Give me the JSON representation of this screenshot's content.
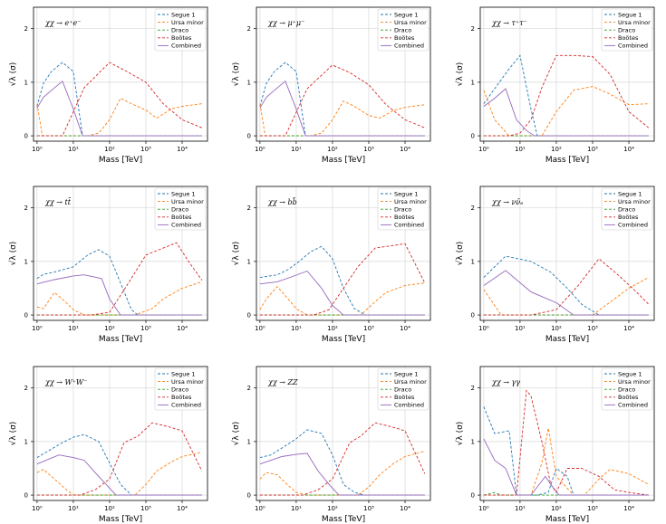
{
  "figure": {
    "ylabel": "√λ (σ)",
    "xlabel": "Mass [TeV]",
    "x_tick_labels": [
      "10⁰",
      "10¹",
      "10²",
      "10³",
      "10⁴"
    ],
    "y_tick_labels": [
      "0",
      "1",
      "2"
    ]
  },
  "series_styles": [
    {
      "name": "Segue 1",
      "color": "#1f77b4",
      "dash": "3,2"
    },
    {
      "name": "Ursa minor",
      "color": "#ff7f0e",
      "dash": "3,2"
    },
    {
      "name": "Draco",
      "color": "#2ca02c",
      "dash": "3,2"
    },
    {
      "name": "Boötes",
      "color": "#d62728",
      "dash": "3,2"
    },
    {
      "name": "Combined",
      "color": "#9467bd",
      "dash": ""
    }
  ],
  "chart_data": [
    {
      "type": "line",
      "title": "χχ → e⁺e⁻",
      "xscale": "log",
      "xlim": [
        0.8,
        50000
      ],
      "ylim": [
        -0.1,
        2.4
      ],
      "series": [
        {
          "name": "Segue 1",
          "x": [
            1,
            1.5,
            2.5,
            5,
            10,
            18
          ],
          "y": [
            0.55,
            0.98,
            1.2,
            1.37,
            1.2,
            0.0
          ]
        },
        {
          "name": "Ursa minor",
          "x": [
            1,
            1.4,
            2,
            10,
            25,
            50,
            100,
            200,
            400,
            1000,
            2000,
            5000,
            10000,
            35000
          ],
          "y": [
            0.6,
            0.0,
            0.0,
            0.0,
            0.0,
            0.05,
            0.3,
            0.7,
            0.6,
            0.48,
            0.33,
            0.5,
            0.55,
            0.6
          ]
        },
        {
          "name": "Draco",
          "x": [
            1,
            35000
          ],
          "y": [
            0.0,
            0.0
          ]
        },
        {
          "name": "Boötes",
          "x": [
            1,
            5,
            20,
            100,
            300,
            1000,
            3000,
            10000,
            35000
          ],
          "y": [
            0.0,
            0.0,
            0.9,
            1.37,
            1.2,
            1.0,
            0.6,
            0.3,
            0.15
          ]
        },
        {
          "name": "Combined",
          "x": [
            1,
            1.5,
            2.5,
            5,
            10,
            18,
            35000
          ],
          "y": [
            0.52,
            0.72,
            0.85,
            1.02,
            0.5,
            0.0,
            0.0
          ]
        }
      ]
    },
    {
      "type": "line",
      "title": "χχ → μ⁺μ⁻",
      "xscale": "log",
      "xlim": [
        0.8,
        50000
      ],
      "ylim": [
        -0.1,
        2.4
      ],
      "series": [
        {
          "name": "Segue 1",
          "x": [
            1,
            1.5,
            2.5,
            5,
            10,
            18
          ],
          "y": [
            0.55,
            0.98,
            1.2,
            1.37,
            1.2,
            0.0
          ]
        },
        {
          "name": "Ursa minor",
          "x": [
            1,
            1.4,
            2,
            10,
            25,
            50,
            100,
            200,
            400,
            1000,
            2000,
            5000,
            10000,
            35000
          ],
          "y": [
            0.6,
            0.0,
            0.0,
            0.0,
            0.0,
            0.05,
            0.3,
            0.65,
            0.55,
            0.38,
            0.33,
            0.48,
            0.53,
            0.58
          ]
        },
        {
          "name": "Draco",
          "x": [
            1,
            35000
          ],
          "y": [
            0.0,
            0.0
          ]
        },
        {
          "name": "Boötes",
          "x": [
            1,
            5,
            20,
            100,
            300,
            1000,
            3000,
            10000,
            35000
          ],
          "y": [
            0.0,
            0.0,
            0.88,
            1.32,
            1.18,
            0.95,
            0.58,
            0.3,
            0.15
          ]
        },
        {
          "name": "Combined",
          "x": [
            1,
            1.5,
            2.5,
            5,
            10,
            18,
            35000
          ],
          "y": [
            0.52,
            0.72,
            0.85,
            1.02,
            0.5,
            0.0,
            0.0
          ]
        }
      ]
    },
    {
      "type": "line",
      "title": "χχ → τ⁺τ⁻",
      "xscale": "log",
      "xlim": [
        0.8,
        50000
      ],
      "ylim": [
        -0.1,
        2.4
      ],
      "series": [
        {
          "name": "Segue 1",
          "x": [
            1,
            2,
            5,
            10,
            20,
            30
          ],
          "y": [
            0.6,
            0.88,
            1.25,
            1.5,
            0.5,
            0.0
          ]
        },
        {
          "name": "Ursa minor",
          "x": [
            1,
            2,
            5,
            20,
            40,
            100,
            300,
            1000,
            3000,
            10000,
            35000
          ],
          "y": [
            0.85,
            0.3,
            0.0,
            0.0,
            0.0,
            0.45,
            0.85,
            0.92,
            0.78,
            0.58,
            0.6
          ]
        },
        {
          "name": "Draco",
          "x": [
            1,
            35000
          ],
          "y": [
            0.0,
            0.0
          ]
        },
        {
          "name": "Boötes",
          "x": [
            1,
            5,
            10,
            20,
            40,
            100,
            300,
            1000,
            3000,
            10000,
            35000
          ],
          "y": [
            0.0,
            0.0,
            0.05,
            0.3,
            0.9,
            1.5,
            1.5,
            1.48,
            1.15,
            0.45,
            0.15
          ]
        },
        {
          "name": "Combined",
          "x": [
            1,
            2,
            4,
            8,
            15,
            25,
            35000
          ],
          "y": [
            0.55,
            0.7,
            0.88,
            0.3,
            0.1,
            0.0,
            0.0
          ]
        }
      ]
    },
    {
      "type": "line",
      "title": "χχ → tt̄",
      "xscale": "log",
      "xlim": [
        0.8,
        50000
      ],
      "ylim": [
        -0.1,
        2.4
      ],
      "series": [
        {
          "name": "Segue 1",
          "x": [
            1,
            1.5,
            3,
            10,
            25,
            50,
            100,
            200,
            400,
            600
          ],
          "y": [
            0.68,
            0.76,
            0.8,
            0.9,
            1.12,
            1.22,
            1.1,
            0.6,
            0.1,
            0.0
          ]
        },
        {
          "name": "Ursa minor",
          "x": [
            1,
            1.5,
            3,
            6,
            10,
            20,
            100,
            500,
            1500,
            3000,
            10000,
            35000
          ],
          "y": [
            0.15,
            0.12,
            0.42,
            0.25,
            0.1,
            0.0,
            0.0,
            0.0,
            0.12,
            0.3,
            0.5,
            0.62
          ]
        },
        {
          "name": "Draco",
          "x": [
            1,
            35000
          ],
          "y": [
            0.0,
            0.0
          ]
        },
        {
          "name": "Boötes",
          "x": [
            1,
            30,
            100,
            300,
            1000,
            3000,
            7000,
            15000,
            35000
          ],
          "y": [
            0.0,
            0.0,
            0.05,
            0.55,
            1.12,
            1.25,
            1.35,
            1.0,
            0.65
          ]
        },
        {
          "name": "Combined",
          "x": [
            1,
            3,
            10,
            20,
            60,
            100,
            200,
            35000
          ],
          "y": [
            0.58,
            0.66,
            0.73,
            0.75,
            0.68,
            0.3,
            0.0,
            0.0
          ]
        }
      ]
    },
    {
      "type": "line",
      "title": "χχ → bb̄",
      "xscale": "log",
      "xlim": [
        0.8,
        50000
      ],
      "ylim": [
        -0.1,
        2.4
      ],
      "series": [
        {
          "name": "Segue 1",
          "x": [
            1,
            1.5,
            3,
            6,
            12,
            25,
            50,
            100,
            200,
            400,
            800
          ],
          "y": [
            0.7,
            0.72,
            0.75,
            0.85,
            1.0,
            1.18,
            1.28,
            1.05,
            0.5,
            0.12,
            0.0
          ]
        },
        {
          "name": "Ursa minor",
          "x": [
            1,
            1.5,
            3,
            6,
            10,
            20,
            100,
            600,
            1500,
            3000,
            10000,
            35000
          ],
          "y": [
            0.1,
            0.3,
            0.53,
            0.3,
            0.12,
            0.0,
            0.0,
            0.0,
            0.25,
            0.42,
            0.55,
            0.6
          ]
        },
        {
          "name": "Draco",
          "x": [
            1,
            35000
          ],
          "y": [
            0.0,
            0.0
          ]
        },
        {
          "name": "Boötes",
          "x": [
            1,
            30,
            80,
            200,
            500,
            1500,
            5000,
            10000,
            35000
          ],
          "y": [
            0.0,
            0.0,
            0.1,
            0.5,
            0.9,
            1.25,
            1.3,
            1.33,
            0.6
          ]
        },
        {
          "name": "Combined",
          "x": [
            1,
            3,
            8,
            20,
            50,
            100,
            200,
            35000
          ],
          "y": [
            0.58,
            0.62,
            0.72,
            0.82,
            0.5,
            0.18,
            0.0,
            0.0
          ]
        }
      ]
    },
    {
      "type": "line",
      "title": "χχ → νν̄ₑ",
      "xscale": "log",
      "xlim": [
        0.8,
        50000
      ],
      "ylim": [
        -0.1,
        2.4
      ],
      "series": [
        {
          "name": "Segue 1",
          "x": [
            1,
            4,
            20,
            70,
            200,
            500,
            1500
          ],
          "y": [
            0.7,
            1.1,
            1.0,
            0.8,
            0.5,
            0.2,
            0.0
          ]
        },
        {
          "name": "Ursa minor",
          "x": [
            1,
            3,
            20,
            100,
            1000,
            2000,
            5000,
            10000,
            35000
          ],
          "y": [
            0.48,
            0.0,
            0.0,
            0.0,
            0.0,
            0.15,
            0.35,
            0.5,
            0.7
          ]
        },
        {
          "name": "Draco",
          "x": [
            1,
            35000
          ],
          "y": [
            0.0,
            0.0
          ]
        },
        {
          "name": "Boötes",
          "x": [
            1,
            20,
            100,
            400,
            1500,
            5000,
            15000,
            35000
          ],
          "y": [
            0.0,
            0.0,
            0.1,
            0.55,
            1.05,
            0.75,
            0.45,
            0.2
          ]
        },
        {
          "name": "Combined",
          "x": [
            1,
            4,
            20,
            100,
            300,
            35000
          ],
          "y": [
            0.55,
            0.83,
            0.43,
            0.23,
            0.0,
            0.0
          ]
        }
      ]
    },
    {
      "type": "line",
      "title": "χχ → W⁺W⁻",
      "xscale": "log",
      "xlim": [
        0.8,
        50000
      ],
      "ylim": [
        -0.1,
        2.4
      ],
      "series": [
        {
          "name": "Segue 1",
          "x": [
            1,
            2,
            5,
            10,
            20,
            50,
            100,
            200,
            400
          ],
          "y": [
            0.7,
            0.82,
            0.98,
            1.08,
            1.13,
            1.0,
            0.6,
            0.2,
            0.0
          ]
        },
        {
          "name": "Ursa minor",
          "x": [
            1,
            1.5,
            3,
            6,
            10,
            20,
            500,
            1000,
            2000,
            5000,
            10000,
            35000
          ],
          "y": [
            0.42,
            0.48,
            0.3,
            0.12,
            0.0,
            0.0,
            0.0,
            0.2,
            0.45,
            0.62,
            0.72,
            0.8
          ]
        },
        {
          "name": "Draco",
          "x": [
            1,
            35000
          ],
          "y": [
            0.0,
            0.0
          ]
        },
        {
          "name": "Boötes",
          "x": [
            1,
            15,
            40,
            100,
            250,
            600,
            1500,
            4000,
            10000,
            35000
          ],
          "y": [
            0.0,
            0.0,
            0.1,
            0.3,
            0.98,
            1.1,
            1.35,
            1.28,
            1.2,
            0.45
          ]
        },
        {
          "name": "Combined",
          "x": [
            1,
            4,
            10,
            20,
            40,
            80,
            150,
            35000
          ],
          "y": [
            0.58,
            0.75,
            0.7,
            0.65,
            0.42,
            0.2,
            0.0,
            0.0
          ]
        }
      ]
    },
    {
      "type": "line",
      "title": "χχ → ZZ",
      "xscale": "log",
      "xlim": [
        0.8,
        50000
      ],
      "ylim": [
        -0.1,
        2.4
      ],
      "series": [
        {
          "name": "Segue 1",
          "x": [
            1,
            2,
            5,
            10,
            20,
            50,
            100,
            200,
            400,
            800
          ],
          "y": [
            0.7,
            0.75,
            0.92,
            1.05,
            1.22,
            1.15,
            0.75,
            0.2,
            0.05,
            0.0
          ]
        },
        {
          "name": "Ursa minor",
          "x": [
            1,
            1.5,
            3,
            6,
            10,
            20,
            500,
            1000,
            2000,
            5000,
            10000,
            35000
          ],
          "y": [
            0.3,
            0.42,
            0.38,
            0.18,
            0.05,
            0.0,
            0.0,
            0.15,
            0.38,
            0.6,
            0.72,
            0.82
          ]
        },
        {
          "name": "Draco",
          "x": [
            1,
            35000
          ],
          "y": [
            0.0,
            0.0
          ]
        },
        {
          "name": "Boötes",
          "x": [
            1,
            15,
            40,
            100,
            300,
            600,
            1500,
            4000,
            10000,
            35000
          ],
          "y": [
            0.0,
            0.0,
            0.1,
            0.3,
            0.98,
            1.1,
            1.35,
            1.28,
            1.2,
            0.4
          ]
        },
        {
          "name": "Combined",
          "x": [
            1,
            4,
            10,
            20,
            40,
            80,
            150,
            35000
          ],
          "y": [
            0.58,
            0.72,
            0.76,
            0.78,
            0.45,
            0.2,
            0.0,
            0.0
          ]
        }
      ]
    },
    {
      "type": "line",
      "title": "χχ → γγ",
      "xscale": "log",
      "xlim": [
        0.8,
        50000
      ],
      "ylim": [
        -0.1,
        2.4
      ],
      "series": [
        {
          "name": "Segue 1",
          "x": [
            1,
            2,
            5,
            8,
            12,
            15,
            20,
            30,
            60,
            100,
            200,
            300
          ],
          "y": [
            1.65,
            1.15,
            1.2,
            0.0,
            0.0,
            0.0,
            0.0,
            0.0,
            0.05,
            0.5,
            0.35,
            0.0
          ]
        },
        {
          "name": "Ursa minor",
          "x": [
            1,
            2,
            5,
            10,
            20,
            40,
            60,
            100,
            300,
            600,
            1500,
            3000,
            10000,
            35000
          ],
          "y": [
            0.0,
            0.0,
            0.0,
            0.0,
            0.0,
            0.6,
            1.25,
            0.35,
            0.0,
            0.0,
            0.3,
            0.48,
            0.4,
            0.2
          ]
        },
        {
          "name": "Draco",
          "x": [
            1,
            2,
            3,
            5,
            35000
          ],
          "y": [
            0.0,
            0.05,
            0.0,
            0.0,
            0.0
          ]
        },
        {
          "name": "Boötes",
          "x": [
            1,
            8,
            15,
            20,
            40,
            70,
            100,
            200,
            500,
            1500,
            4000,
            10000,
            35000
          ],
          "y": [
            0.0,
            0.0,
            1.95,
            1.85,
            1.0,
            0.2,
            0.05,
            0.5,
            0.5,
            0.35,
            0.1,
            0.05,
            0.0
          ]
        },
        {
          "name": "Combined",
          "x": [
            1,
            2,
            4,
            8,
            20,
            50,
            70,
            120,
            200,
            35000
          ],
          "y": [
            1.05,
            0.65,
            0.5,
            0.0,
            0.0,
            0.35,
            0.2,
            0.0,
            0.0,
            0.0
          ]
        }
      ]
    }
  ]
}
